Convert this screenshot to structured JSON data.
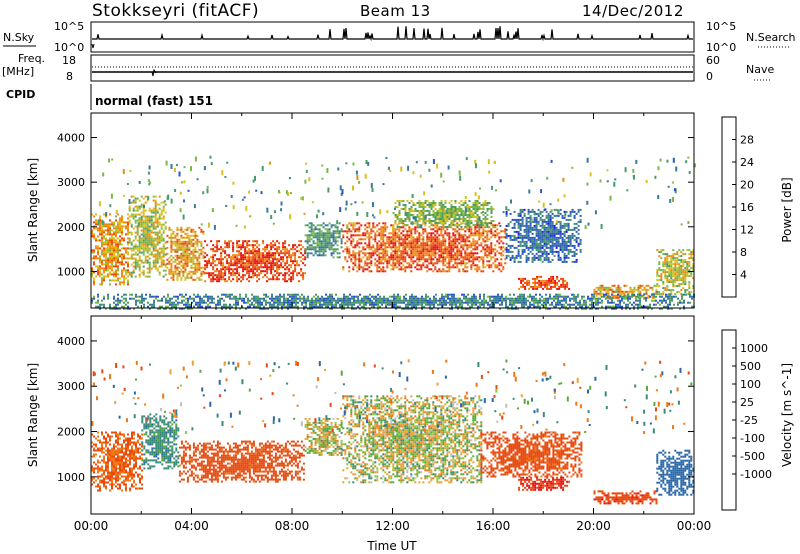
{
  "header": {
    "station": "Stokkseyri (fitACF)",
    "beam": "Beam 13",
    "date": "14/Dec/2012"
  },
  "strip_labels": {
    "nsky": "N.Sky",
    "nsky_top": "10^5",
    "nsky_bottom": "10^0",
    "nsearch": "N.Search",
    "nsearch_top": "10^5",
    "nsearch_bottom": "10^0",
    "freq": "Freq.",
    "freq_unit": "[MHz]",
    "freq_top": "18",
    "freq_bottom": "8",
    "nave": "Nave",
    "nave_top": "60",
    "nave_bottom": "0",
    "cpid": "CPID",
    "cpid_value": "normal (fast) 151"
  },
  "chart_data": [
    {
      "type": "heatmap",
      "panel": "power",
      "ylabel": "Slant Range [km]",
      "ylim": [
        180,
        4550
      ],
      "yticks": [
        1000,
        2000,
        3000,
        4000
      ],
      "xlim": [
        "00:00",
        "24:00"
      ],
      "colorbar": {
        "label": "Power [dB]",
        "ticks": [
          4,
          8,
          12,
          16,
          20,
          24,
          28
        ],
        "range": [
          0,
          32
        ],
        "colors": [
          "#1a1ae6",
          "#2a55c8",
          "#3a7a9a",
          "#4a9a6a",
          "#7ab84a",
          "#d8c020",
          "#f08a10",
          "#ee4a10",
          "#e81010"
        ]
      },
      "echo_regions": [
        {
          "t": [
            0.0,
            1.5
          ],
          "range": [
            700,
            2300
          ],
          "level": 22
        },
        {
          "t": [
            1.5,
            3.0
          ],
          "range": [
            900,
            2700
          ],
          "level": 18
        },
        {
          "t": [
            3.0,
            4.5
          ],
          "range": [
            800,
            2000
          ],
          "level": 22
        },
        {
          "t": [
            4.5,
            8.5
          ],
          "range": [
            800,
            1700
          ],
          "level": 27
        },
        {
          "t": [
            8.5,
            10.0
          ],
          "range": [
            1300,
            2100
          ],
          "level": 12
        },
        {
          "t": [
            10.0,
            16.5
          ],
          "range": [
            1000,
            2100
          ],
          "level": 26
        },
        {
          "t": [
            12.0,
            16.0
          ],
          "range": [
            2000,
            2600
          ],
          "level": 16
        },
        {
          "t": [
            16.5,
            19.5
          ],
          "range": [
            1200,
            2400
          ],
          "level": 8
        },
        {
          "t": [
            17.0,
            19.0
          ],
          "range": [
            600,
            900
          ],
          "level": 27
        },
        {
          "t": [
            20.0,
            22.5
          ],
          "range": [
            400,
            700
          ],
          "level": 22
        },
        {
          "t": [
            22.5,
            24.0
          ],
          "range": [
            500,
            1500
          ],
          "level": 18
        },
        {
          "t": [
            0.0,
            24.0
          ],
          "range": [
            180,
            500
          ],
          "level": 10
        }
      ]
    },
    {
      "type": "heatmap",
      "panel": "velocity",
      "ylabel": "Slant Range [km]",
      "xlabel": "Time UT",
      "ylim": [
        180,
        4550
      ],
      "yticks": [
        1000,
        2000,
        3000,
        4000
      ],
      "xticks": [
        "00:00",
        "04:00",
        "08:00",
        "12:00",
        "16:00",
        "20:00",
        "00:00"
      ],
      "colorbar": {
        "label": "Velocity [m s^-1]",
        "ticks": [
          "1000",
          "500",
          "100",
          "25",
          "-25",
          "-100",
          "-500",
          "-1000"
        ],
        "colors": [
          "#2244bb",
          "#2a66a8",
          "#3a8a7a",
          "#5aaa3a",
          "#88cc44",
          "#c0c0b8",
          "#f0a030",
          "#f07818",
          "#e84a10",
          "#e81010"
        ]
      },
      "echo_regions": [
        {
          "t": [
            0.0,
            2.0
          ],
          "range": [
            700,
            2000
          ],
          "level": -300
        },
        {
          "t": [
            2.0,
            3.5
          ],
          "range": [
            1200,
            2400
          ],
          "level": 200
        },
        {
          "t": [
            3.5,
            8.5
          ],
          "range": [
            900,
            1800
          ],
          "level": -400
        },
        {
          "t": [
            8.5,
            10.0
          ],
          "range": [
            1500,
            2300
          ],
          "level": 0
        },
        {
          "t": [
            10.0,
            15.5
          ],
          "range": [
            900,
            2800
          ],
          "level": 0
        },
        {
          "t": [
            15.5,
            19.5
          ],
          "range": [
            1000,
            2000
          ],
          "level": -400
        },
        {
          "t": [
            17.0,
            19.0
          ],
          "range": [
            700,
            1000
          ],
          "level": -600
        },
        {
          "t": [
            20.0,
            22.5
          ],
          "range": [
            400,
            700
          ],
          "level": -500
        },
        {
          "t": [
            22.5,
            24.0
          ],
          "range": [
            600,
            1600
          ],
          "level": 500
        }
      ]
    }
  ]
}
